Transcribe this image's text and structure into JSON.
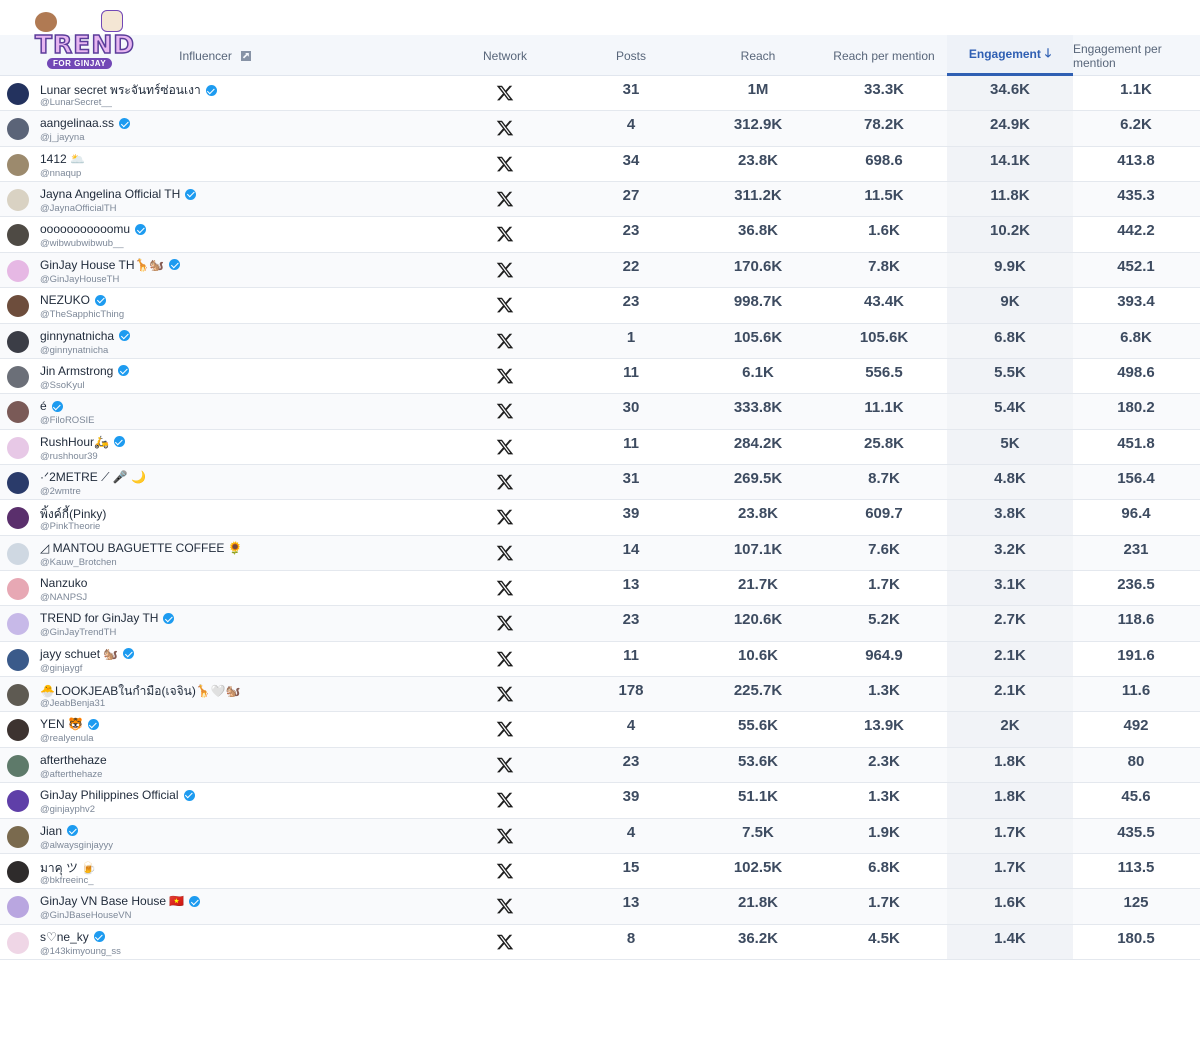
{
  "logo": {
    "title": "TREND",
    "subtitle": "FOR GINJAY"
  },
  "header": {
    "influencer": "Influencer",
    "network": "Network",
    "posts": "Posts",
    "reach": "Reach",
    "reach_per_mention": "Reach per mention",
    "engagement": "Engagement",
    "engagement_per_mention": "Engagement per mention"
  },
  "sort": {
    "column": "engagement",
    "direction": "descending",
    "icon": "arrow-down-icon"
  },
  "colors": {
    "accent": "#2f5fb3",
    "verified": "#1d9bf0"
  },
  "rows": [
    {
      "name": "Lunar secret พระจันทร์ซ่อนเงา",
      "handle": "@LunarSecret__",
      "verified": true,
      "network": "x",
      "posts": "31",
      "reach": "1M",
      "rpm": "33.3K",
      "eng": "34.6K",
      "epm": "1.1K",
      "avatar": "#23325e"
    },
    {
      "name": "aangelinaa.ss",
      "handle": "@j_jayyna",
      "verified": true,
      "network": "x",
      "posts": "4",
      "reach": "312.9K",
      "rpm": "78.2K",
      "eng": "24.9K",
      "epm": "6.2K",
      "avatar": "#5b6478"
    },
    {
      "name": "1412 🌥️",
      "handle": "@nnaqup",
      "verified": false,
      "network": "x",
      "posts": "34",
      "reach": "23.8K",
      "rpm": "698.6",
      "eng": "14.1K",
      "epm": "413.8",
      "avatar": "#9c8a6d"
    },
    {
      "name": "Jayna Angelina Official TH",
      "handle": "@JaynaOfficialTH",
      "verified": true,
      "network": "x",
      "posts": "27",
      "reach": "311.2K",
      "rpm": "11.5K",
      "eng": "11.8K",
      "epm": "435.3",
      "avatar": "#d9d2c3"
    },
    {
      "name": "ooooooooooomu",
      "handle": "@wibwubwibwub__",
      "verified": true,
      "network": "x",
      "posts": "23",
      "reach": "36.8K",
      "rpm": "1.6K",
      "eng": "10.2K",
      "epm": "442.2",
      "avatar": "#4e4a44"
    },
    {
      "name": "GinJay House TH🦒🐿️",
      "handle": "@GinJayHouseTH",
      "verified": true,
      "network": "x",
      "posts": "22",
      "reach": "170.6K",
      "rpm": "7.8K",
      "eng": "9.9K",
      "epm": "452.1",
      "avatar": "#e6b8e4"
    },
    {
      "name": "NEZUKO",
      "handle": "@TheSapphicThing",
      "verified": true,
      "network": "x",
      "posts": "23",
      "reach": "998.7K",
      "rpm": "43.4K",
      "eng": "9K",
      "epm": "393.4",
      "avatar": "#6d4d3c"
    },
    {
      "name": "ginnynatnicha",
      "handle": "@ginnynatnicha",
      "verified": true,
      "network": "x",
      "posts": "1",
      "reach": "105.6K",
      "rpm": "105.6K",
      "eng": "6.8K",
      "epm": "6.8K",
      "avatar": "#3b3d46"
    },
    {
      "name": "Jin Armstrong",
      "handle": "@SsoKyul",
      "verified": true,
      "network": "x",
      "posts": "11",
      "reach": "6.1K",
      "rpm": "556.5",
      "eng": "5.5K",
      "epm": "498.6",
      "avatar": "#6b6f78"
    },
    {
      "name": "é",
      "handle": "@FiloROSIE",
      "verified": true,
      "network": "x",
      "posts": "30",
      "reach": "333.8K",
      "rpm": "11.1K",
      "eng": "5.4K",
      "epm": "180.2",
      "avatar": "#7a5a57"
    },
    {
      "name": "RushHour🛵",
      "handle": "@rushhour39",
      "verified": true,
      "network": "x",
      "posts": "11",
      "reach": "284.2K",
      "rpm": "25.8K",
      "eng": "5K",
      "epm": "451.8",
      "avatar": "#e7c8e6"
    },
    {
      "name": "·ᐟ2METRE ⟋ 🎤 🌙",
      "handle": "@2wmtre",
      "verified": false,
      "network": "x",
      "posts": "31",
      "reach": "269.5K",
      "rpm": "8.7K",
      "eng": "4.8K",
      "epm": "156.4",
      "avatar": "#2a3b6a"
    },
    {
      "name": "พิ้งค์กี้(Pinky)",
      "handle": "@PinkTheorie",
      "verified": false,
      "network": "x",
      "posts": "39",
      "reach": "23.8K",
      "rpm": "609.7",
      "eng": "3.8K",
      "epm": "96.4",
      "avatar": "#5a2f6c"
    },
    {
      "name": "◿ MANTOU BAGUETTE COFFEE 🌻",
      "handle": "@Kauw_Brotchen",
      "verified": false,
      "network": "x",
      "posts": "14",
      "reach": "107.1K",
      "rpm": "7.6K",
      "eng": "3.2K",
      "epm": "231",
      "avatar": "#cfd8e2"
    },
    {
      "name": "Nanzuko",
      "handle": "@NANPSJ",
      "verified": false,
      "network": "x",
      "posts": "13",
      "reach": "21.7K",
      "rpm": "1.7K",
      "eng": "3.1K",
      "epm": "236.5",
      "avatar": "#e7a8b4"
    },
    {
      "name": "TREND for GinJay TH",
      "handle": "@GinJayTrendTH",
      "verified": true,
      "network": "x",
      "posts": "23",
      "reach": "120.6K",
      "rpm": "5.2K",
      "eng": "2.7K",
      "epm": "118.6",
      "avatar": "#c7b9e8"
    },
    {
      "name": "jayy schuet 🐿️",
      "handle": "@ginjaygf",
      "verified": true,
      "network": "x",
      "posts": "11",
      "reach": "10.6K",
      "rpm": "964.9",
      "eng": "2.1K",
      "epm": "191.6",
      "avatar": "#3a5a8a"
    },
    {
      "name": "🐣LOOKJEABในกำมือ(เจจิน)🦒🤍🐿️",
      "handle": "@JeabBenja31",
      "verified": false,
      "network": "x",
      "posts": "178",
      "reach": "225.7K",
      "rpm": "1.3K",
      "eng": "2.1K",
      "epm": "11.6",
      "avatar": "#5e5a52"
    },
    {
      "name": "YEN 🐯",
      "handle": "@realyenula",
      "verified": true,
      "network": "x",
      "posts": "4",
      "reach": "55.6K",
      "rpm": "13.9K",
      "eng": "2K",
      "epm": "492",
      "avatar": "#3d3330"
    },
    {
      "name": "afterthehaze",
      "handle": "@afterthehaze",
      "verified": false,
      "network": "x",
      "posts": "23",
      "reach": "53.6K",
      "rpm": "2.3K",
      "eng": "1.8K",
      "epm": "80",
      "avatar": "#5e7a6a"
    },
    {
      "name": "GinJay Philippines Official",
      "handle": "@ginjayphv2",
      "verified": true,
      "network": "x",
      "posts": "39",
      "reach": "51.1K",
      "rpm": "1.3K",
      "eng": "1.8K",
      "epm": "45.6",
      "avatar": "#5f3fa8"
    },
    {
      "name": "Jian",
      "handle": "@alwaysginjayyy",
      "verified": true,
      "network": "x",
      "posts": "4",
      "reach": "7.5K",
      "rpm": "1.9K",
      "eng": "1.7K",
      "epm": "435.5",
      "avatar": "#7a6a4e"
    },
    {
      "name": "มาคุ ツ 🍺",
      "handle": "@bkfreeinc_",
      "verified": false,
      "network": "x",
      "posts": "15",
      "reach": "102.5K",
      "rpm": "6.8K",
      "eng": "1.7K",
      "epm": "113.5",
      "avatar": "#2e2b2b"
    },
    {
      "name": "GinJay VN Base House 🇻🇳",
      "handle": "@GinJBaseHouseVN",
      "verified": true,
      "network": "x",
      "posts": "13",
      "reach": "21.8K",
      "rpm": "1.7K",
      "eng": "1.6K",
      "epm": "125",
      "avatar": "#b9a6e0"
    },
    {
      "name": "s♡ne_ky",
      "handle": "@143kimyoung_ss",
      "verified": true,
      "network": "x",
      "posts": "8",
      "reach": "36.2K",
      "rpm": "4.5K",
      "eng": "1.4K",
      "epm": "180.5",
      "avatar": "#efd6e6"
    }
  ]
}
